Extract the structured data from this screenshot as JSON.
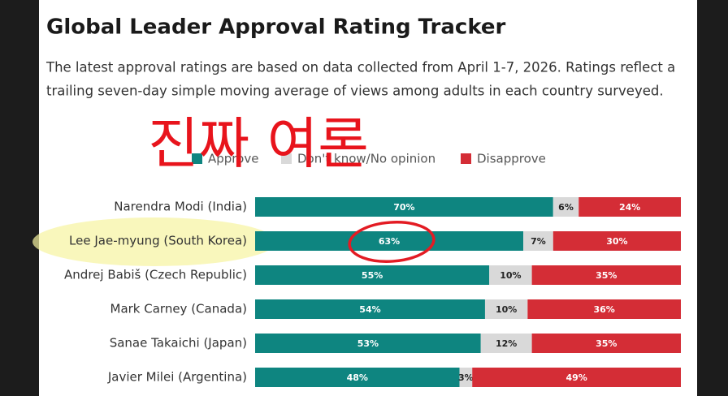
{
  "chart_data": {
    "type": "stacked-bar",
    "title": "Global Leader Approval Rating Tracker",
    "subtitle": [
      "The latest approval ratings are based on data collected from April 1-7, 2026. Ratings reflect a",
      "trailing seven-day simple moving average of views among adults in each country surveyed."
    ],
    "annotation": "진짜 여론",
    "categories": [
      "Narendra Modi (India)",
      "Lee Jae-myung (South Korea)",
      "Andrej Babiš (Czech Republic)",
      "Mark Carney (Canada)",
      "Sanae Takaichi (Japan)",
      "Javier Milei (Argentina)"
    ],
    "xlim": [
      0,
      100
    ],
    "series": [
      {
        "name": "Approve",
        "color": "#0e8580",
        "values": [
          70,
          63,
          55,
          54,
          53,
          48
        ],
        "value_labels": [
          "70%",
          "63%",
          "55%",
          "54%",
          "53%",
          "48%"
        ]
      },
      {
        "name": "Don't know/No opinion",
        "color": "#d9d9d9",
        "values": [
          6,
          7,
          10,
          10,
          12,
          3
        ],
        "value_labels": [
          "6%",
          "7%",
          "10%",
          "10%",
          "12%",
          "3%"
        ]
      },
      {
        "name": "Disapprove",
        "color": "#d42d36",
        "values": [
          24,
          30,
          35,
          36,
          35,
          49
        ],
        "value_labels": [
          "24%",
          "30%",
          "35%",
          "36%",
          "35%",
          "49%"
        ]
      }
    ]
  }
}
